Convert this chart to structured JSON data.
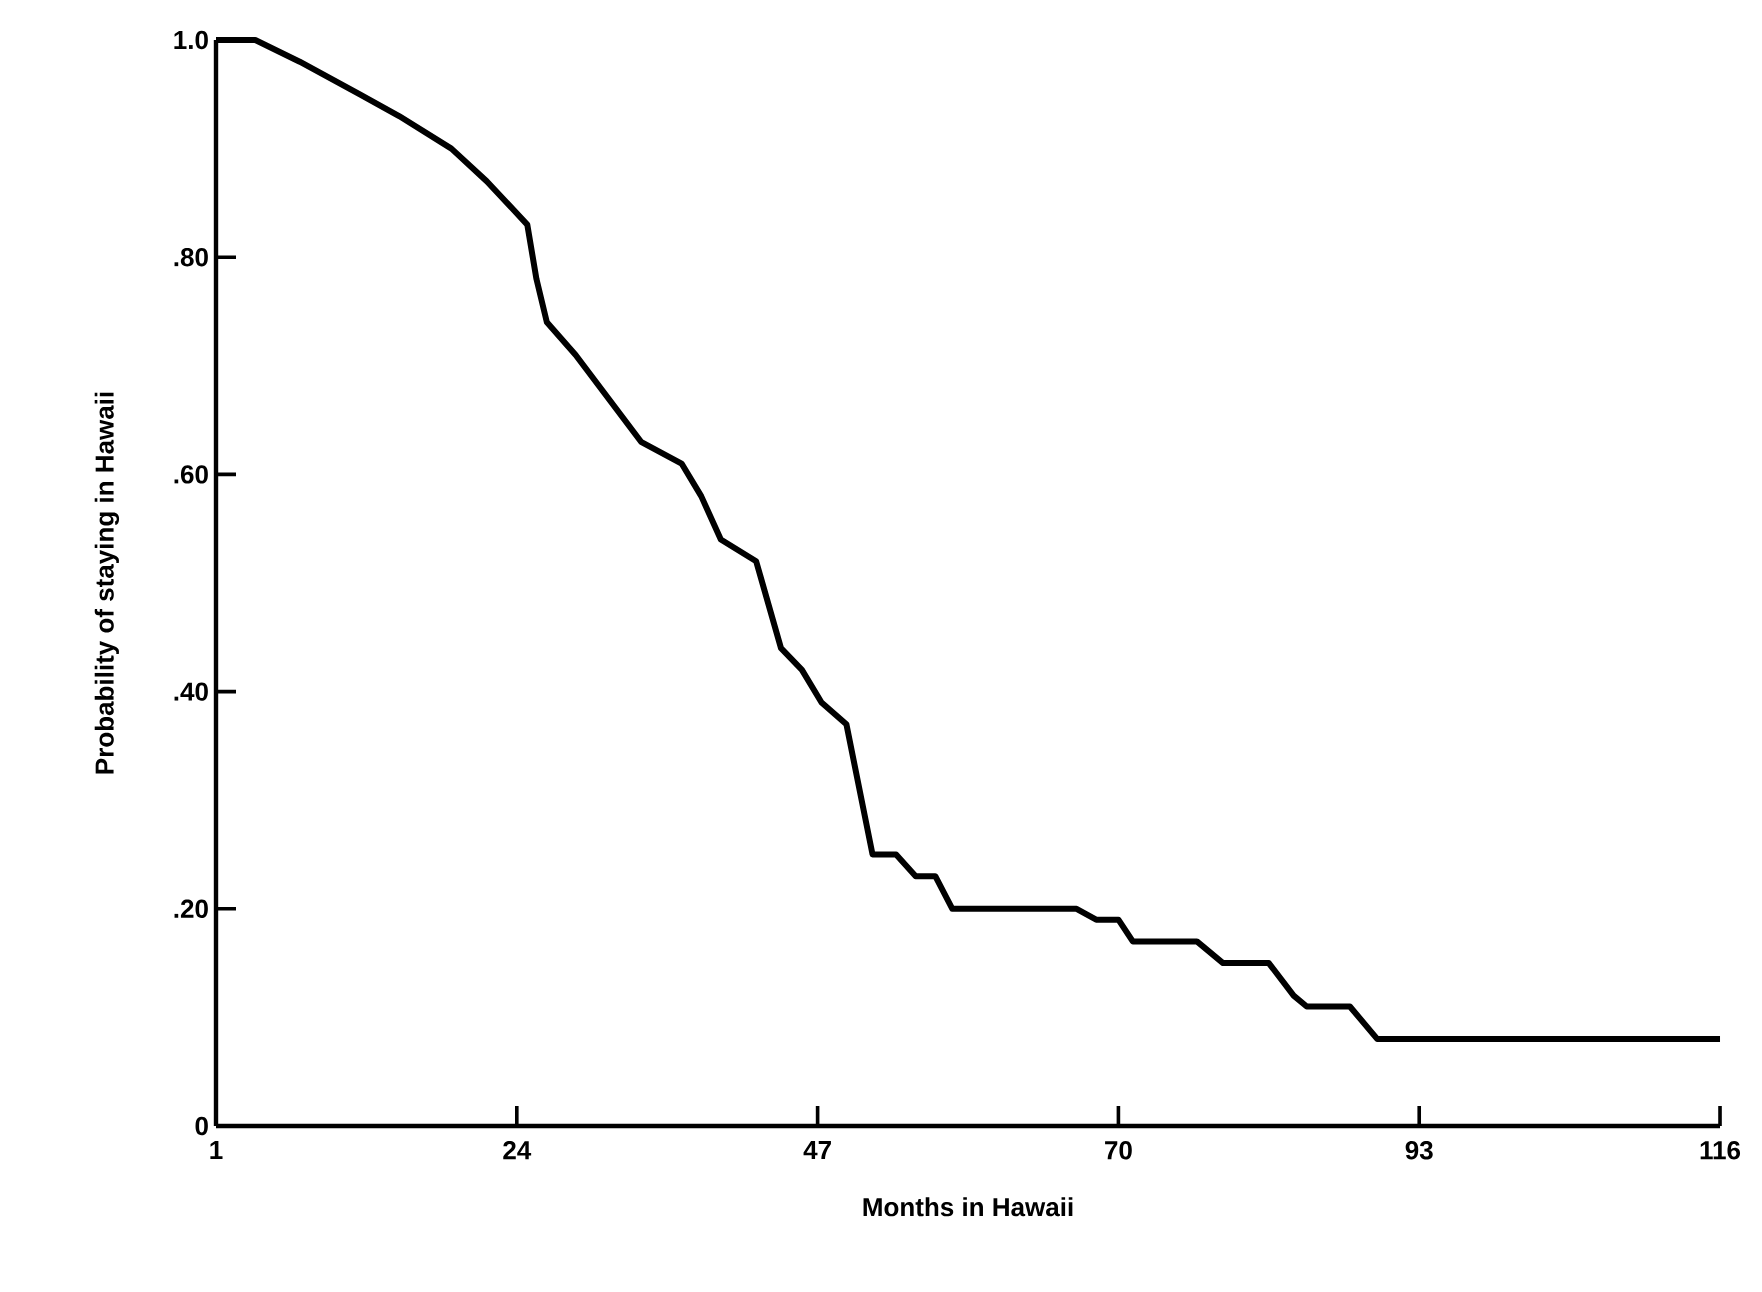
{
  "chart_data": {
    "type": "line",
    "xlabel": "Months in Hawaii",
    "ylabel": "Probability of staying in Hawaii",
    "color": "#000000",
    "x": [
      1,
      4,
      7.4,
      12,
      15,
      19,
      21.7,
      24.8,
      25.5,
      26.3,
      28.5,
      33.5,
      36.6,
      38.1,
      39.6,
      42.3,
      44.2,
      45.8,
      47.3,
      49.2,
      51.2,
      53,
      54.5,
      56,
      57.3,
      66.8,
      68.3,
      70,
      71.1,
      76,
      78,
      81.5,
      83.4,
      84.4,
      87.7,
      89.8,
      116
    ],
    "values": [
      1.0,
      1.0,
      0.98,
      0.95,
      0.93,
      0.9,
      0.87,
      0.83,
      0.78,
      0.74,
      0.71,
      0.63,
      0.61,
      0.58,
      0.54,
      0.52,
      0.44,
      0.42,
      0.39,
      0.37,
      0.25,
      0.25,
      0.23,
      0.23,
      0.2,
      0.2,
      0.19,
      0.19,
      0.17,
      0.17,
      0.15,
      0.15,
      0.12,
      0.11,
      0.11,
      0.08,
      0.08
    ],
    "xlim": [
      1,
      116
    ],
    "ylim": [
      0,
      1
    ],
    "xticks": [
      1,
      24,
      47,
      70,
      93,
      116
    ],
    "yticks": [
      0,
      {
        "value": 0.2,
        "label": ".20"
      },
      {
        "value": 0.4,
        "label": ".40"
      },
      {
        "value": 0.6,
        "label": ".60"
      },
      {
        "value": 0.8,
        "label": ".80"
      },
      {
        "value": 1,
        "label": "1.0"
      }
    ]
  }
}
